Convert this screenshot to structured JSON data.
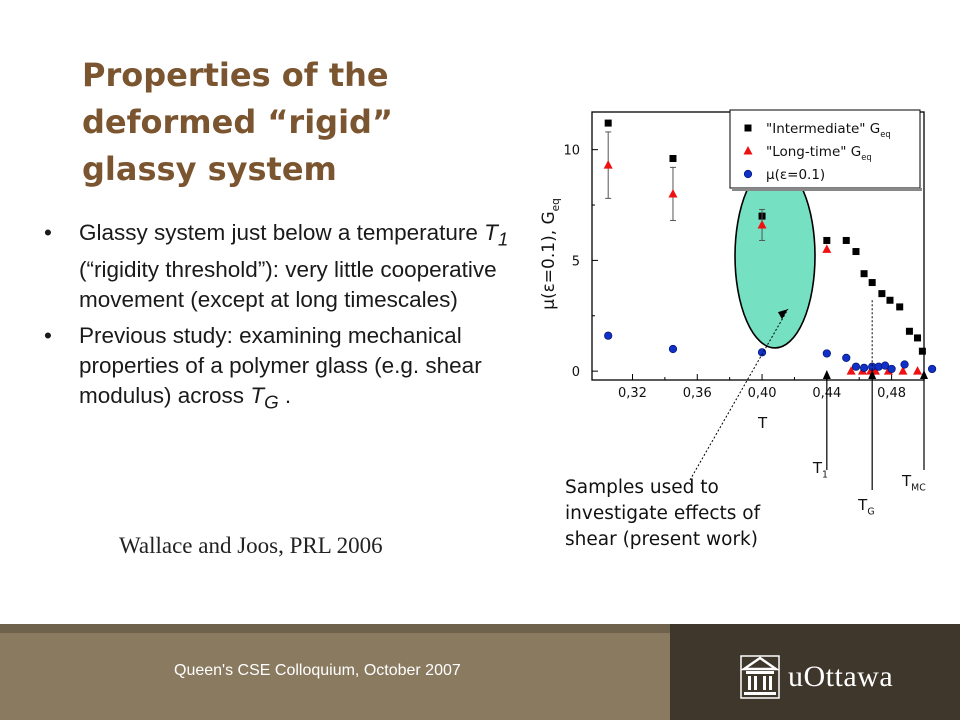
{
  "slide": {
    "title_lines": [
      "Properties of the",
      "deformed “rigid”",
      "glassy system"
    ],
    "bullet1": {
      "pre": "Glassy system just below a temperature ",
      "T": "T",
      "sub": "1",
      "post": " (“rigidity threshold”): very little cooperative movement (except at long timescales)"
    },
    "bullet2": {
      "pre": "Previous study: examining mechanical properties of a polymer glass (e.g. shear modulus) across ",
      "T": "T",
      "sub": "G",
      "post": " ."
    },
    "bullet_symbol": "•",
    "citation": "Wallace and Joos, PRL 2006",
    "note": "Samples used to investigate effects of shear (present work)",
    "footer": "Queen's CSE Colloquium, October 2007",
    "logo_text": "uOttawa"
  },
  "colors": {
    "title": "#7a5530",
    "footer_left": "#8a7a60",
    "footer_right": "#3f362c",
    "ellipse_fill": "#76e0c2",
    "series_intermediate": "#000000",
    "series_longtime": "#ee1111",
    "series_mu": "#1030c8"
  },
  "chart_data": {
    "type": "scatter",
    "ylabel": "μ(ε=0.1), G",
    "ylabel_sub": "eq",
    "xlim": [
      0.295,
      0.5
    ],
    "ylim": [
      -0.4,
      11.7
    ],
    "x_ticks": [
      0.32,
      0.36,
      0.4,
      0.44,
      0.48
    ],
    "x_tick_labels": [
      "0,32",
      "0,36",
      "0,40",
      "0,44",
      "0,48"
    ],
    "y_ticks": [
      0,
      5,
      10
    ],
    "y_tick_labels": [
      "0",
      "5",
      "10"
    ],
    "legend_position": "top-right",
    "legend": [
      {
        "label": "\"Intermediate\" G",
        "sub": "eq",
        "marker": "square"
      },
      {
        "label": "\"Long-time\" G",
        "sub": "eq",
        "marker": "triangle"
      },
      {
        "label": "μ(ε=0.1)",
        "sub": "",
        "marker": "circle"
      }
    ],
    "series": [
      {
        "name": "\"Intermediate\" G eq",
        "marker": "square",
        "points": [
          [
            0.305,
            11.2
          ],
          [
            0.345,
            9.6
          ],
          [
            0.4,
            7.0
          ],
          [
            0.44,
            5.9
          ],
          [
            0.452,
            5.9
          ],
          [
            0.458,
            5.4
          ],
          [
            0.463,
            4.4
          ],
          [
            0.468,
            4.0
          ],
          [
            0.474,
            3.5
          ],
          [
            0.479,
            3.2
          ],
          [
            0.485,
            2.9
          ],
          [
            0.491,
            1.8
          ],
          [
            0.496,
            1.5
          ],
          [
            0.499,
            0.9
          ]
        ]
      },
      {
        "name": "\"Long-time\" G eq",
        "marker": "triangle",
        "error_bars": true,
        "points": [
          [
            0.305,
            9.3,
            1.5
          ],
          [
            0.345,
            8.0,
            1.2
          ],
          [
            0.4,
            6.6,
            0.7
          ],
          [
            0.44,
            5.5,
            0
          ],
          [
            0.455,
            0,
            0
          ],
          [
            0.462,
            0,
            0
          ],
          [
            0.467,
            0,
            0
          ],
          [
            0.47,
            0,
            0
          ],
          [
            0.478,
            0,
            0
          ],
          [
            0.487,
            0,
            0
          ],
          [
            0.496,
            0,
            0
          ]
        ]
      },
      {
        "name": "μ(ε=0.1)",
        "marker": "circle",
        "points": [
          [
            0.305,
            1.6
          ],
          [
            0.345,
            1.0
          ],
          [
            0.4,
            0.85
          ],
          [
            0.44,
            0.8
          ],
          [
            0.452,
            0.6
          ],
          [
            0.458,
            0.2
          ],
          [
            0.463,
            0.15
          ],
          [
            0.468,
            0.2
          ],
          [
            0.472,
            0.2
          ],
          [
            0.476,
            0.25
          ],
          [
            0.48,
            0.1
          ],
          [
            0.488,
            0.3
          ],
          [
            0.505,
            0.1
          ]
        ]
      }
    ],
    "annotations": [
      {
        "label": "T",
        "sub": "",
        "at_x": 0.4
      },
      {
        "label": "T",
        "sub": "1",
        "at_x": 0.44
      },
      {
        "label": "T",
        "sub": "G",
        "at_x": 0.468
      },
      {
        "label": "T",
        "sub": "MC",
        "at_x": 0.5
      }
    ]
  }
}
